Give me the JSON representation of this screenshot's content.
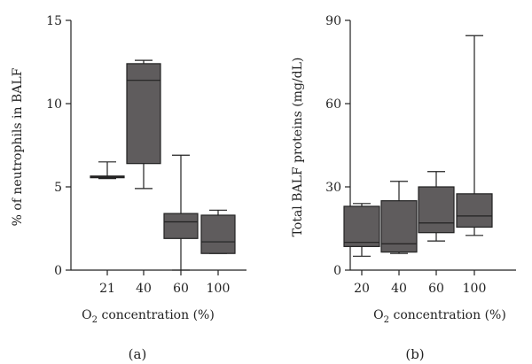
{
  "chart_data": [
    {
      "type": "box",
      "panel_label": "(a)",
      "ylabel": "% of neutrophils in BALF",
      "xlabel_main": "O",
      "xlabel_sub": "2",
      "xlabel_rest": " concentration (%)",
      "ylim": [
        0,
        15
      ],
      "yticks": [
        0,
        5,
        10,
        15
      ],
      "categories": [
        "21",
        "40",
        "60",
        "100"
      ],
      "boxes": [
        {
          "category": "21",
          "min": 5.5,
          "q1": 5.55,
          "median": 5.6,
          "q3": 5.65,
          "max": 6.5
        },
        {
          "category": "40",
          "min": 4.9,
          "q1": 6.4,
          "median": 11.4,
          "q3": 12.4,
          "max": 12.6
        },
        {
          "category": "60",
          "min": 0.0,
          "q1": 1.9,
          "median": 2.9,
          "q3": 3.4,
          "max": 6.9
        },
        {
          "category": "100",
          "min": 1.0,
          "q1": 1.0,
          "median": 1.7,
          "q3": 3.3,
          "max": 3.6
        }
      ]
    },
    {
      "type": "box",
      "panel_label": "(b)",
      "ylabel": "Total BALF proteins (mg/dL)",
      "xlabel_main": "O",
      "xlabel_sub": "2",
      "xlabel_rest": " concentration (%)",
      "ylim": [
        0,
        90
      ],
      "yticks": [
        0,
        30,
        60,
        90
      ],
      "categories": [
        "20",
        "40",
        "60",
        "100"
      ],
      "boxes": [
        {
          "category": "20",
          "min": 5.0,
          "q1": 8.5,
          "median": 10.0,
          "q3": 23.0,
          "max": 24.0
        },
        {
          "category": "40",
          "min": 6.0,
          "q1": 6.5,
          "median": 9.5,
          "q3": 25.0,
          "max": 32.0
        },
        {
          "category": "60",
          "min": 10.5,
          "q1": 13.5,
          "median": 17.0,
          "q3": 30.0,
          "max": 35.5
        },
        {
          "category": "100",
          "min": 12.5,
          "q1": 15.5,
          "median": 19.5,
          "q3": 27.5,
          "max": 84.5
        }
      ]
    }
  ]
}
